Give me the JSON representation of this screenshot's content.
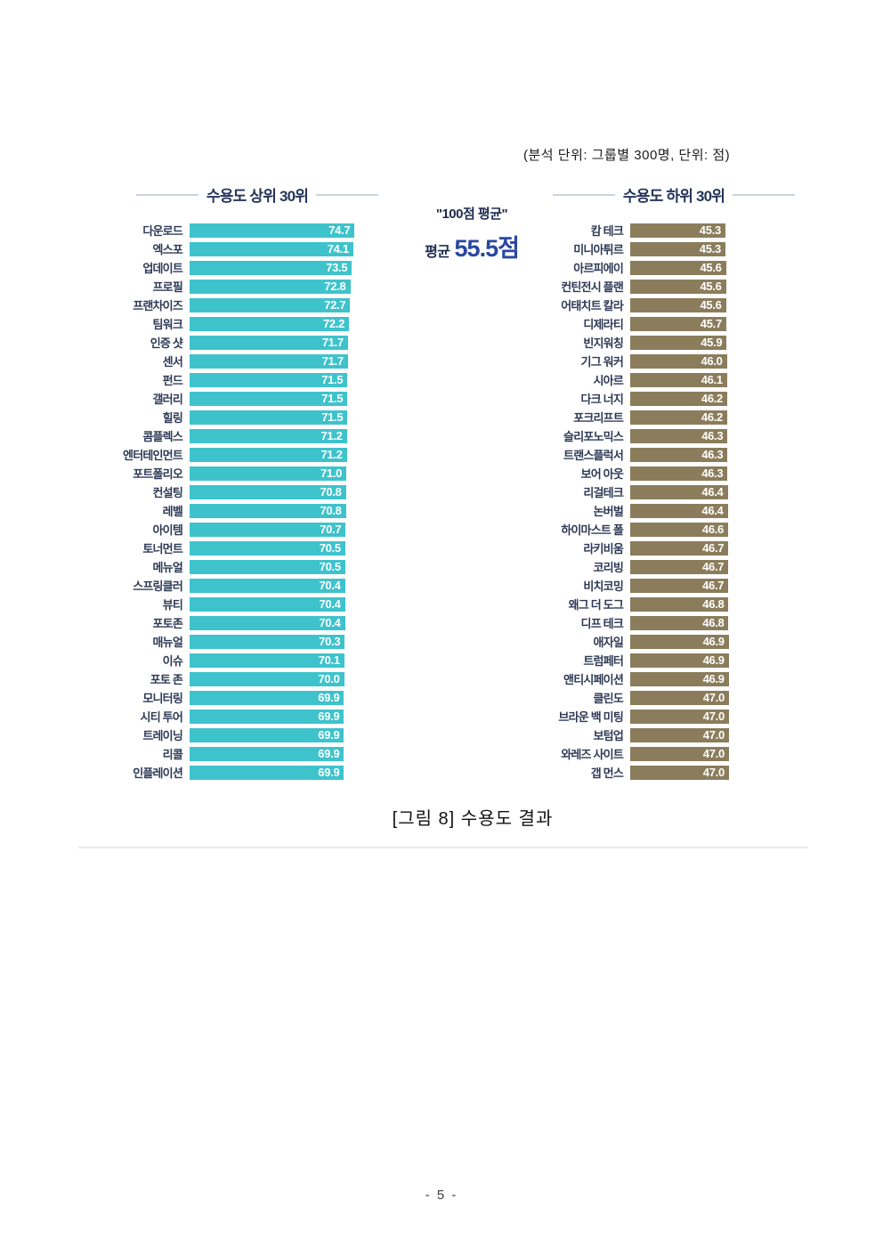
{
  "document": {
    "note": "(분석 단위: 그룹별 300명, 단위: 점)",
    "caption": "[그림 8] 수용도 결과",
    "page_number": "- 5 -"
  },
  "average_panel": {
    "quote": "\"100점 평균\"",
    "prefix": "평균",
    "value": "55.5점"
  },
  "colors": {
    "top30_bar": "#3ec3cc",
    "bottom30_bar": "#8b7d5c",
    "title_navy": "#25355a",
    "label_navy": "#2e3a56",
    "value_text": "#ffffff",
    "average_blue": "#2947a0",
    "title_line": "#c9d4e0",
    "divider": "#e9e9e9"
  },
  "chart_data": [
    {
      "type": "bar",
      "orientation": "horizontal",
      "title": "수용도 상위 30위",
      "unit": "점",
      "value_range_hint": [
        0,
        80
      ],
      "bar_color": "#3ec3cc",
      "categories": [
        "다운로드",
        "엑스포",
        "업데이트",
        "프로필",
        "프랜차이즈",
        "팀워크",
        "인증 샷",
        "센서",
        "펀드",
        "갤러리",
        "힐링",
        "콤플렉스",
        "엔터테인먼트",
        "포트폴리오",
        "컨설팅",
        "레벨",
        "아이템",
        "토너먼트",
        "메뉴얼",
        "스프링클러",
        "뷰티",
        "포토존",
        "매뉴얼",
        "이슈",
        "포토 존",
        "모니터링",
        "시티 투어",
        "트레이닝",
        "리콜",
        "인플레이션"
      ],
      "values": [
        74.7,
        74.1,
        73.5,
        72.8,
        72.7,
        72.2,
        71.7,
        71.7,
        71.5,
        71.5,
        71.5,
        71.2,
        71.2,
        71.0,
        70.8,
        70.8,
        70.7,
        70.5,
        70.5,
        70.4,
        70.4,
        70.4,
        70.3,
        70.1,
        70.0,
        69.9,
        69.9,
        69.9,
        69.9,
        69.9
      ]
    },
    {
      "type": "bar",
      "orientation": "horizontal",
      "title": "수용도 하위 30위",
      "unit": "점",
      "value_range_hint": [
        0,
        80
      ],
      "bar_color": "#8b7d5c",
      "categories": [
        "캄 테크",
        "미니아튀르",
        "아르피에이",
        "컨틴전시 플랜",
        "어태치트 칼라",
        "디제라티",
        "빈지워칭",
        "기그 워커",
        "시아르",
        "다크 너지",
        "포크리프트",
        "슬리포노믹스",
        "트랜스플럭서",
        "보어 아웃",
        "리걸테크",
        "논버벌",
        "하이마스트 폴",
        "라키비움",
        "코리빙",
        "비치코밍",
        "왜그 더 도그",
        "디프 테크",
        "애자일",
        "트럼페터",
        "앤티시페이션",
        "클린도",
        "브라운 백 미팅",
        "보텀업",
        "와레즈 사이트",
        "갭 먼스"
      ],
      "values": [
        45.3,
        45.3,
        45.6,
        45.6,
        45.6,
        45.7,
        45.9,
        46.0,
        46.1,
        46.2,
        46.2,
        46.3,
        46.3,
        46.3,
        46.4,
        46.4,
        46.6,
        46.7,
        46.7,
        46.7,
        46.8,
        46.8,
        46.9,
        46.9,
        46.9,
        47.0,
        47.0,
        47.0,
        47.0,
        47.0
      ]
    }
  ]
}
